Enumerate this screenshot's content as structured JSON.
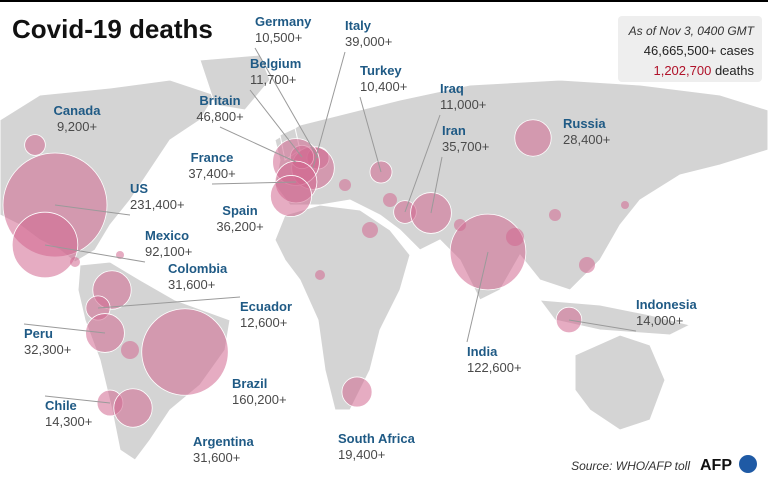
{
  "header": {
    "title": "Covid-19 deaths"
  },
  "summary": {
    "as_of": "As of Nov 3, 0400 GMT",
    "cases": "46,665,500+ cases",
    "deaths_total": "1,202,700",
    "deaths_word": "deaths"
  },
  "countries": [
    {
      "name": "Germany",
      "label": "10,500+",
      "deaths": 10500
    },
    {
      "name": "Italy",
      "label": "39,000+",
      "deaths": 39000
    },
    {
      "name": "Belgium",
      "label": "11,700+",
      "deaths": 11700
    },
    {
      "name": "Britain",
      "label": "46,800+",
      "deaths": 46800
    },
    {
      "name": "France",
      "label": "37,400+",
      "deaths": 37400
    },
    {
      "name": "Spain",
      "label": "36,200+",
      "deaths": 36200
    },
    {
      "name": "Turkey",
      "label": "10,400+",
      "deaths": 10400
    },
    {
      "name": "Iraq",
      "label": "11,000+",
      "deaths": 11000
    },
    {
      "name": "Iran",
      "label": "35,700+",
      "deaths": 35700
    },
    {
      "name": "Russia",
      "label": "28,400+",
      "deaths": 28400
    },
    {
      "name": "Canada",
      "label": "9,200+",
      "deaths": 9200
    },
    {
      "name": "US",
      "label": "231,400+",
      "deaths": 231400
    },
    {
      "name": "Mexico",
      "label": "92,100+",
      "deaths": 92100
    },
    {
      "name": "Colombia",
      "label": "31,600+",
      "deaths": 31600
    },
    {
      "name": "Ecuador",
      "label": "12,600+",
      "deaths": 12600
    },
    {
      "name": "Peru",
      "label": "32,300+",
      "deaths": 32300
    },
    {
      "name": "Brazil",
      "label": "160,200+",
      "deaths": 160200
    },
    {
      "name": "Chile",
      "label": "14,300+",
      "deaths": 14300
    },
    {
      "name": "Argentina",
      "label": "31,600+",
      "deaths": 31600
    },
    {
      "name": "South Africa",
      "label": "19,400+",
      "deaths": 19400
    },
    {
      "name": "India",
      "label": "122,600+",
      "deaths": 122600
    },
    {
      "name": "Indonesia",
      "label": "14,000+",
      "deaths": 14000
    }
  ],
  "footer": {
    "source": "Source: WHO/AFP toll",
    "logo": "AFP"
  }
}
